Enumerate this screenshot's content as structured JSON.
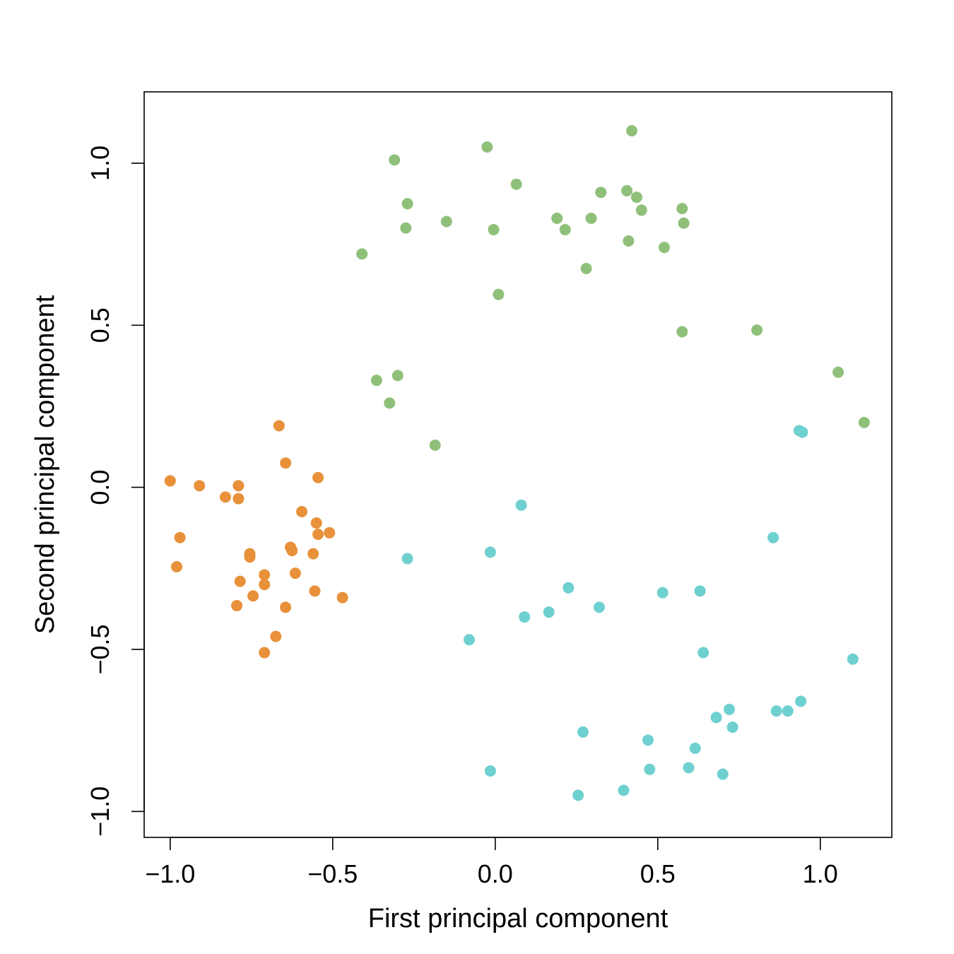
{
  "chart_data": {
    "type": "scatter",
    "title": "",
    "xlabel": "First principal component",
    "ylabel": "Second principal component",
    "xlim": [
      -1.08,
      1.22
    ],
    "ylim": [
      -1.08,
      1.22
    ],
    "x_ticks": [
      -1.0,
      -0.5,
      0.0,
      0.5,
      1.0
    ],
    "x_tick_labels": [
      "−1.0",
      "−0.5",
      "0.0",
      "0.5",
      "1.0"
    ],
    "y_ticks": [
      -1.0,
      -0.5,
      0.0,
      0.5,
      1.0
    ],
    "y_tick_labels": [
      "−1.0",
      "−0.5",
      "0.0",
      "0.5",
      "1.0"
    ],
    "grid": false,
    "legend": "none",
    "series": [
      {
        "color": "#e8913a",
        "points": [
          [
            -1.0,
            0.02
          ],
          [
            -0.91,
            0.005
          ],
          [
            -0.83,
            -0.03
          ],
          [
            -0.79,
            0.005
          ],
          [
            -0.79,
            -0.035
          ],
          [
            -0.665,
            0.19
          ],
          [
            -0.645,
            0.075
          ],
          [
            -0.545,
            0.03
          ],
          [
            -0.595,
            -0.075
          ],
          [
            -0.55,
            -0.11
          ],
          [
            -0.545,
            -0.145
          ],
          [
            -0.51,
            -0.14
          ],
          [
            -0.97,
            -0.155
          ],
          [
            -0.98,
            -0.245
          ],
          [
            -0.755,
            -0.205
          ],
          [
            -0.755,
            -0.215
          ],
          [
            -0.63,
            -0.185
          ],
          [
            -0.625,
            -0.195
          ],
          [
            -0.56,
            -0.205
          ],
          [
            -0.615,
            -0.265
          ],
          [
            -0.71,
            -0.27
          ],
          [
            -0.785,
            -0.29
          ],
          [
            -0.71,
            -0.3
          ],
          [
            -0.555,
            -0.32
          ],
          [
            -0.745,
            -0.335
          ],
          [
            -0.47,
            -0.34
          ],
          [
            -0.795,
            -0.365
          ],
          [
            -0.645,
            -0.37
          ],
          [
            -0.675,
            -0.46
          ],
          [
            -0.71,
            -0.51
          ]
        ]
      },
      {
        "color": "#8fc07a",
        "points": [
          [
            0.42,
            1.1
          ],
          [
            -0.025,
            1.05
          ],
          [
            -0.31,
            1.01
          ],
          [
            0.065,
            0.935
          ],
          [
            0.325,
            0.91
          ],
          [
            0.405,
            0.915
          ],
          [
            0.435,
            0.895
          ],
          [
            -0.27,
            0.875
          ],
          [
            0.45,
            0.855
          ],
          [
            0.575,
            0.86
          ],
          [
            0.58,
            0.815
          ],
          [
            0.19,
            0.83
          ],
          [
            0.295,
            0.83
          ],
          [
            -0.15,
            0.82
          ],
          [
            -0.275,
            0.8
          ],
          [
            -0.005,
            0.795
          ],
          [
            0.215,
            0.795
          ],
          [
            0.41,
            0.76
          ],
          [
            0.52,
            0.74
          ],
          [
            -0.41,
            0.72
          ],
          [
            0.28,
            0.675
          ],
          [
            0.01,
            0.595
          ],
          [
            0.575,
            0.48
          ],
          [
            0.805,
            0.485
          ],
          [
            1.055,
            0.355
          ],
          [
            -0.365,
            0.33
          ],
          [
            -0.3,
            0.345
          ],
          [
            -0.325,
            0.26
          ],
          [
            -0.185,
            0.13
          ],
          [
            1.135,
            0.2
          ]
        ]
      },
      {
        "color": "#6fd0d0",
        "points": [
          [
            0.935,
            0.175
          ],
          [
            0.945,
            0.17
          ],
          [
            0.08,
            -0.055
          ],
          [
            0.855,
            -0.155
          ],
          [
            -0.015,
            -0.2
          ],
          [
            -0.27,
            -0.22
          ],
          [
            0.225,
            -0.31
          ],
          [
            0.515,
            -0.325
          ],
          [
            0.63,
            -0.32
          ],
          [
            0.32,
            -0.37
          ],
          [
            0.165,
            -0.385
          ],
          [
            0.09,
            -0.4
          ],
          [
            -0.08,
            -0.47
          ],
          [
            0.64,
            -0.51
          ],
          [
            1.1,
            -0.53
          ],
          [
            0.94,
            -0.66
          ],
          [
            0.865,
            -0.69
          ],
          [
            0.9,
            -0.69
          ],
          [
            0.72,
            -0.685
          ],
          [
            0.68,
            -0.71
          ],
          [
            0.73,
            -0.74
          ],
          [
            0.27,
            -0.755
          ],
          [
            0.47,
            -0.78
          ],
          [
            0.615,
            -0.805
          ],
          [
            0.595,
            -0.865
          ],
          [
            0.475,
            -0.87
          ],
          [
            0.7,
            -0.885
          ],
          [
            -0.015,
            -0.875
          ],
          [
            0.395,
            -0.935
          ],
          [
            0.255,
            -0.95
          ]
        ]
      }
    ]
  }
}
